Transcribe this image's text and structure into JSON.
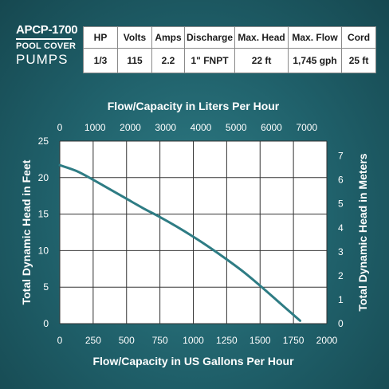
{
  "brand": {
    "model": "APCP-1700",
    "line2": "POOL COVER",
    "line3": "PUMPS"
  },
  "specs": {
    "headers": [
      "HP",
      "Volts",
      "Amps",
      "Discharge",
      "Max. Head",
      "Max. Flow",
      "Cord"
    ],
    "values": [
      "1/3",
      "115",
      "2.2",
      "1\" FNPT",
      "22 ft",
      "1,745 gph",
      "25 ft"
    ]
  },
  "colors": {
    "curve": "#2e7c84",
    "background": "#1f5f69",
    "plot_bg": "#ffffff",
    "grid": "#333333"
  },
  "chart_data": {
    "type": "line",
    "xlabel": "Flow/Capacity in US Gallons Per Hour",
    "ylabel": "Total Dynamic Head in Feet",
    "x2label": "Flow/Capacity in Liters Per Hour",
    "y2label": "Total Dynamic Head in Meters",
    "xlim": [
      0,
      2000
    ],
    "ylim": [
      0,
      25
    ],
    "x2lim": [
      0,
      7570
    ],
    "y2lim": [
      0,
      7.62
    ],
    "x_ticks": [
      0,
      250,
      500,
      750,
      1000,
      1250,
      1500,
      1750,
      2000
    ],
    "y_ticks": [
      0,
      5,
      10,
      15,
      20,
      25
    ],
    "x2_ticks": [
      0,
      1000,
      2000,
      3000,
      4000,
      5000,
      6000,
      7000
    ],
    "y2_ticks": [
      0,
      1,
      2,
      3,
      4,
      5,
      6,
      7
    ],
    "grid": true,
    "series": [
      {
        "x": [
          0,
          125,
          250,
          375,
          500,
          625,
          750,
          875,
          1000,
          1125,
          1250,
          1375,
          1500,
          1625,
          1750,
          1800
        ],
        "y": [
          21.7,
          20.9,
          19.7,
          18.4,
          17.1,
          15.8,
          14.6,
          13.3,
          11.9,
          10.4,
          8.8,
          7.1,
          5.2,
          3.2,
          1.2,
          0.4
        ]
      }
    ]
  }
}
